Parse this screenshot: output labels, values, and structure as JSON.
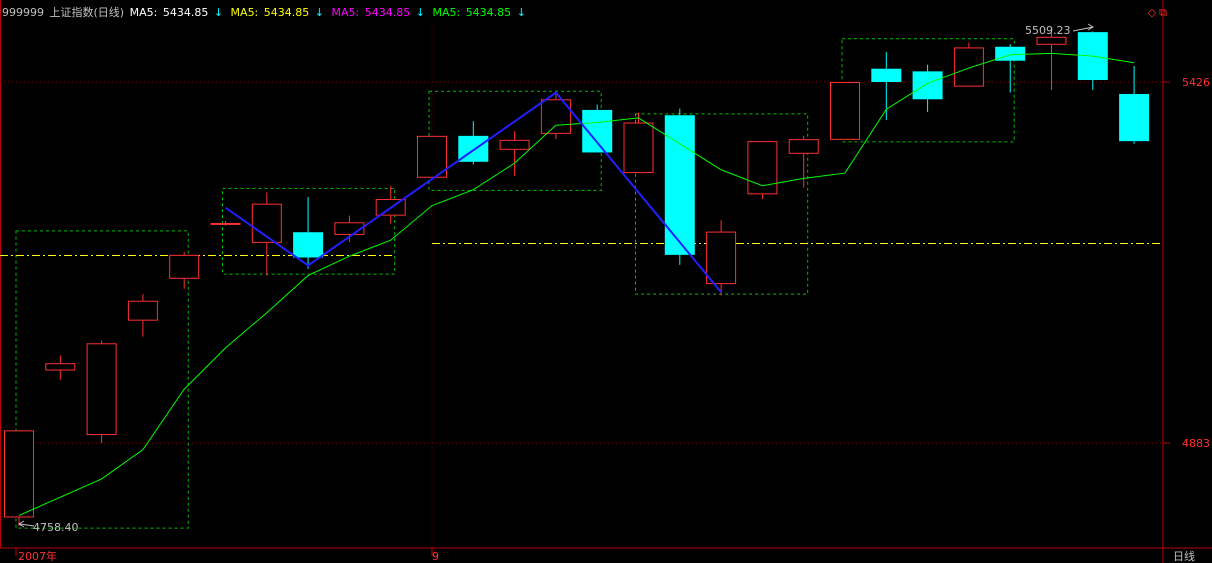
{
  "header": {
    "code": "999999",
    "name": "上证指数(日线)",
    "indicators": [
      {
        "label": "MA5:",
        "value": "5434.85",
        "arrow": "↓",
        "color": "#ffffff",
        "arrow_color": "#00ffff"
      },
      {
        "label": "MA5:",
        "value": "5434.85",
        "arrow": "↓",
        "color": "#ffff00",
        "arrow_color": "#00ffff"
      },
      {
        "label": "MA5:",
        "value": "5434.85",
        "arrow": "↓",
        "color": "#ff00ff",
        "arrow_color": "#00ffff"
      },
      {
        "label": "MA5:",
        "value": "5434.85",
        "arrow": "↓",
        "color": "#00ff00",
        "arrow_color": "#00ffff"
      }
    ],
    "corner_icons": [
      "diamond-icon",
      "window-restore-icon"
    ]
  },
  "colors": {
    "up": "#ff3030",
    "down": "#00ffff",
    "ma": "#00ff00",
    "axis": "#c00000",
    "zigzag": "#2020ff",
    "box": "#00c000",
    "hline": "#ffff00"
  },
  "chart_data": {
    "type": "candlestick",
    "title": "上证指数(日线)",
    "y_axis_ticks": [
      5426,
      4883
    ],
    "x_axis_labels": [
      "2007年",
      "9"
    ],
    "period_label": "日线",
    "ylim": [
      4730,
      5590
    ],
    "annotations": {
      "high_label": "5509.23",
      "low_label": "4758.40"
    },
    "candles": [
      {
        "open": 4771,
        "close": 4902,
        "high": 4902,
        "low": 4758.4
      },
      {
        "open": 4992,
        "close": 5003,
        "high": 5015,
        "low": 4978
      },
      {
        "open": 4895,
        "close": 5033,
        "high": 5037,
        "low": 4883
      },
      {
        "open": 5067,
        "close": 5097,
        "high": 5107,
        "low": 5043
      },
      {
        "open": 5130,
        "close": 5166,
        "high": 5170,
        "low": 5115
      },
      {
        "open": 5211,
        "close": 5214,
        "high": 5217,
        "low": 5210
      },
      {
        "open": 5184,
        "close": 5243,
        "high": 5260,
        "low": 5135
      },
      {
        "open": 5200,
        "close": 5162,
        "high": 5253,
        "low": 5145
      },
      {
        "open": 5196,
        "close": 5215,
        "high": 5225,
        "low": 5185
      },
      {
        "open": 5225,
        "close": 5250,
        "high": 5270,
        "low": 5213
      },
      {
        "open": 5282,
        "close": 5345,
        "high": 5345,
        "low": 5282
      },
      {
        "open": 5345,
        "close": 5306,
        "high": 5367,
        "low": 5302
      },
      {
        "open": 5324,
        "close": 5339,
        "high": 5352,
        "low": 5285
      },
      {
        "open": 5348,
        "close": 5400,
        "high": 5410,
        "low": 5340
      },
      {
        "open": 5384,
        "close": 5320,
        "high": 5392,
        "low": 5320
      },
      {
        "open": 5289,
        "close": 5365,
        "high": 5380,
        "low": 5289
      },
      {
        "open": 5376,
        "close": 5166,
        "high": 5386,
        "low": 5151
      },
      {
        "open": 5122,
        "close": 5201,
        "high": 5218,
        "low": 5105
      },
      {
        "open": 5257,
        "close": 5337,
        "high": 5337,
        "low": 5250
      },
      {
        "open": 5318,
        "close": 5340,
        "high": 5345,
        "low": 5267
      },
      {
        "open": 5339,
        "close": 5426,
        "high": 5426,
        "low": 5340
      },
      {
        "open": 5446,
        "close": 5426,
        "high": 5471,
        "low": 5369
      },
      {
        "open": 5442,
        "close": 5400,
        "high": 5452,
        "low": 5381
      },
      {
        "open": 5419,
        "close": 5478,
        "high": 5485,
        "low": 5419
      },
      {
        "open": 5479,
        "close": 5458,
        "high": 5483,
        "low": 5410
      },
      {
        "open": 5482,
        "close": 5494,
        "high": 5509.23,
        "low": 5414
      },
      {
        "open": 5501,
        "close": 5429,
        "high": 5502,
        "low": 5414
      },
      {
        "open": 5408,
        "close": 5337,
        "high": 5450,
        "low": 5333
      }
    ],
    "ma_series": {
      "name": "MA5",
      "points": [
        {
          "i": 0,
          "v": 4774
        },
        {
          "i": 2,
          "v": 4829
        },
        {
          "i": 3,
          "v": 4873
        },
        {
          "i": 4,
          "v": 4964
        },
        {
          "i": 5,
          "v": 5026
        },
        {
          "i": 6,
          "v": 5079
        },
        {
          "i": 7,
          "v": 5135
        },
        {
          "i": 8,
          "v": 5164
        },
        {
          "i": 9,
          "v": 5188
        },
        {
          "i": 10,
          "v": 5240
        },
        {
          "i": 11,
          "v": 5264
        },
        {
          "i": 12,
          "v": 5304
        },
        {
          "i": 13,
          "v": 5361
        },
        {
          "i": 14,
          "v": 5365
        },
        {
          "i": 15,
          "v": 5372
        },
        {
          "i": 16,
          "v": 5333
        },
        {
          "i": 17,
          "v": 5294
        },
        {
          "i": 18,
          "v": 5270
        },
        {
          "i": 19,
          "v": 5281
        },
        {
          "i": 20,
          "v": 5289
        },
        {
          "i": 21,
          "v": 5385
        },
        {
          "i": 22,
          "v": 5424
        },
        {
          "i": 23,
          "v": 5447
        },
        {
          "i": 24,
          "v": 5467
        },
        {
          "i": 25,
          "v": 5469
        },
        {
          "i": 26,
          "v": 5465
        },
        {
          "i": 27,
          "v": 5455
        }
      ]
    },
    "zigzag": [
      {
        "i": 5,
        "v": 5237
      },
      {
        "i": 7,
        "v": 5150
      },
      {
        "i": 13,
        "v": 5410
      },
      {
        "i": 17,
        "v": 5110
      }
    ],
    "zone_boxes": [
      {
        "i_start": 0,
        "i_end": 4,
        "v_top": 5202,
        "v_bottom": 4755
      },
      {
        "i_start": 5,
        "i_end": 9,
        "v_top": 5266,
        "v_bottom": 5137
      },
      {
        "i_start": 10,
        "i_end": 14,
        "v_top": 5412,
        "v_bottom": 5263
      },
      {
        "i_start": 15,
        "i_end": 19,
        "v_top": 5378,
        "v_bottom": 5107
      },
      {
        "i_start": 20,
        "i_end": 24,
        "v_top": 5491,
        "v_bottom": 5336
      }
    ],
    "reference_line": {
      "v": 5165,
      "label": "dash-dot reference"
    }
  }
}
